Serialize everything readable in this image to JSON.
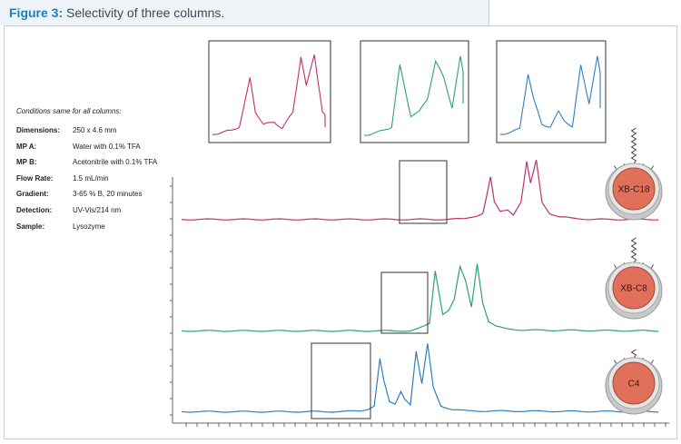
{
  "figure": {
    "label": "Figure 3:",
    "caption": " Selectivity of three columns."
  },
  "conditions": {
    "heading": "Conditions same for all columns:",
    "rows": [
      {
        "label": "Dimensions:",
        "value": "250 x 4.6 mm"
      },
      {
        "label": "MP A:",
        "value": "Water with 0.1% TFA"
      },
      {
        "label": "MP B:",
        "value": "Acetonitrile with 0.1% TFA"
      },
      {
        "label": "Flow Rate:",
        "value": "1.5 mL/min"
      },
      {
        "label": "Gradient:",
        "value": "3-65 % B, 20 minutes"
      },
      {
        "label": "Detection:",
        "value": "UV-Vis/214 nm"
      },
      {
        "label": "Sample:",
        "value": "Lysozyme"
      }
    ]
  },
  "colors": {
    "xb_c18": "#c0306a",
    "xb_c8": "#2ea26a",
    "c4": "#2f7fbf",
    "badge_fill": "#e0705a",
    "axis": "#666666"
  },
  "chart_data": {
    "type": "line",
    "title": "Selectivity of three columns.",
    "xlabel": "",
    "ylabel": "",
    "x_range": [
      0,
      25
    ],
    "x_units": "relative retention (unlabeled)",
    "grid": false,
    "series": [
      {
        "name": "XB-C18",
        "baseline": 0.02,
        "points": [
          [
            0,
            0.02
          ],
          [
            10,
            0.02
          ],
          [
            14,
            0.02
          ],
          [
            14.8,
            0.03
          ],
          [
            15.2,
            0.06
          ],
          [
            15.5,
            0.08
          ],
          [
            15.8,
            0.12
          ],
          [
            16.0,
            0.4
          ],
          [
            16.2,
            0.7
          ],
          [
            16.4,
            0.3
          ],
          [
            16.7,
            0.15
          ],
          [
            17.1,
            0.18
          ],
          [
            17.4,
            0.1
          ],
          [
            17.8,
            0.3
          ],
          [
            18.1,
            0.95
          ],
          [
            18.3,
            0.6
          ],
          [
            18.6,
            0.98
          ],
          [
            18.9,
            0.3
          ],
          [
            19.3,
            0.12
          ],
          [
            19.8,
            0.06
          ],
          [
            20.5,
            0.04
          ],
          [
            21.5,
            0.02
          ],
          [
            25,
            0.02
          ]
        ]
      },
      {
        "name": "XB-C8",
        "baseline": 0.02,
        "points": [
          [
            0,
            0.02
          ],
          [
            10,
            0.02
          ],
          [
            12.0,
            0.02
          ],
          [
            12.4,
            0.05
          ],
          [
            12.7,
            0.08
          ],
          [
            13.0,
            0.12
          ],
          [
            13.3,
            0.85
          ],
          [
            13.5,
            0.55
          ],
          [
            13.7,
            0.25
          ],
          [
            14.0,
            0.3
          ],
          [
            14.3,
            0.45
          ],
          [
            14.6,
            0.9
          ],
          [
            14.9,
            0.7
          ],
          [
            15.2,
            0.35
          ],
          [
            15.5,
            0.95
          ],
          [
            15.8,
            0.4
          ],
          [
            16.1,
            0.15
          ],
          [
            16.5,
            0.08
          ],
          [
            17.0,
            0.05
          ],
          [
            18.0,
            0.03
          ],
          [
            25,
            0.02
          ]
        ]
      },
      {
        "name": "C4",
        "baseline": 0.02,
        "points": [
          [
            0,
            0.02
          ],
          [
            8,
            0.02
          ],
          [
            9.4,
            0.03
          ],
          [
            9.8,
            0.06
          ],
          [
            10.1,
            0.1
          ],
          [
            10.4,
            0.75
          ],
          [
            10.6,
            0.45
          ],
          [
            10.9,
            0.15
          ],
          [
            11.2,
            0.12
          ],
          [
            11.5,
            0.3
          ],
          [
            11.7,
            0.2
          ],
          [
            12.0,
            0.12
          ],
          [
            12.3,
            0.85
          ],
          [
            12.6,
            0.4
          ],
          [
            12.9,
            0.95
          ],
          [
            13.2,
            0.35
          ],
          [
            13.6,
            0.1
          ],
          [
            14.2,
            0.05
          ],
          [
            15.0,
            0.03
          ],
          [
            25,
            0.02
          ]
        ]
      }
    ]
  },
  "badges": [
    {
      "label": "XB-C18"
    },
    {
      "label": "XB-C8"
    },
    {
      "label": "C4"
    }
  ]
}
